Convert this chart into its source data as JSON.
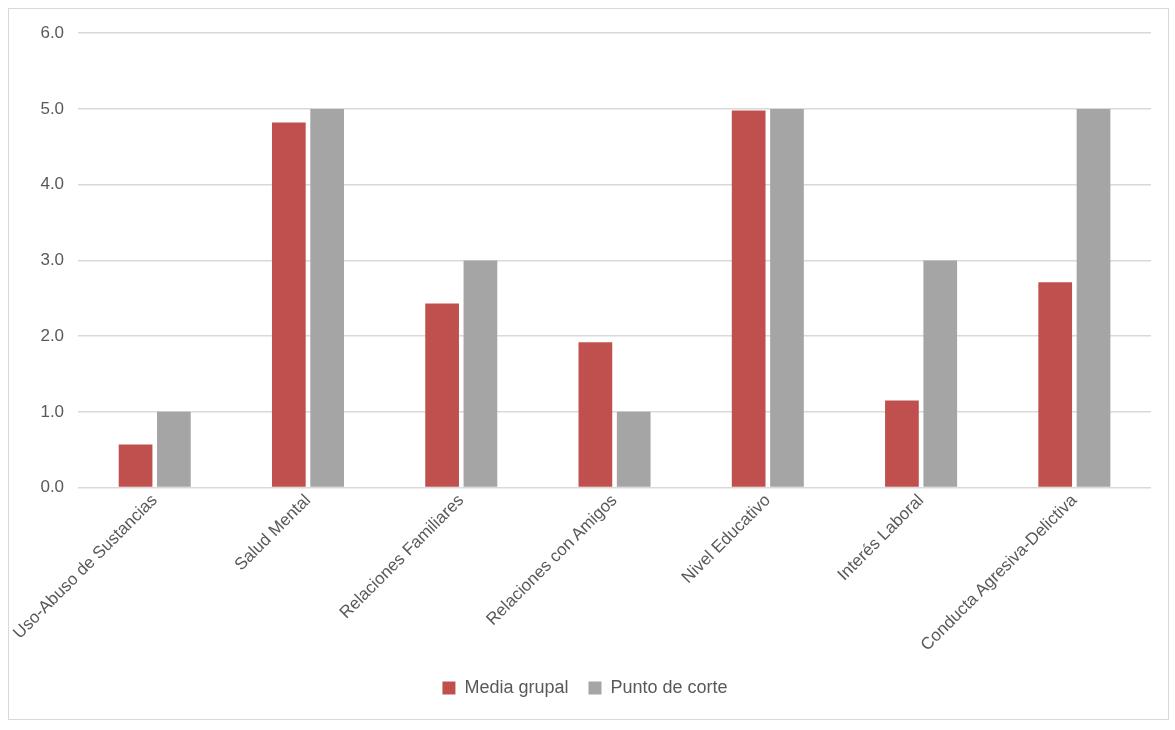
{
  "chart_data": {
    "type": "bar",
    "categories": [
      "Uso-Abuso de Sustancias",
      "Salud Mental",
      "Relaciones Familiares",
      "Relaciones con Amigos",
      "Nivel Educativo",
      "Interés Laboral",
      "Conducta Agresiva-Delictiva"
    ],
    "series": [
      {
        "name": "Media grupal",
        "color": "#c0504d",
        "values": [
          0.57,
          4.82,
          2.43,
          1.92,
          4.98,
          1.15,
          2.71
        ]
      },
      {
        "name": "Punto de corte",
        "color": "#a5a5a5",
        "values": [
          1,
          5,
          3,
          1,
          5,
          3,
          5
        ]
      }
    ],
    "ylim": [
      0,
      6
    ],
    "yticks": [
      {
        "value": 0,
        "label": "0.0"
      },
      {
        "value": 1,
        "label": "1.0"
      },
      {
        "value": 2,
        "label": "2.0"
      },
      {
        "value": 3,
        "label": "3.0"
      },
      {
        "value": 4,
        "label": "4.0"
      },
      {
        "value": 5,
        "label": "5.0"
      },
      {
        "value": 6,
        "label": "6.0"
      }
    ],
    "grid": "y",
    "legend": "bottom"
  }
}
